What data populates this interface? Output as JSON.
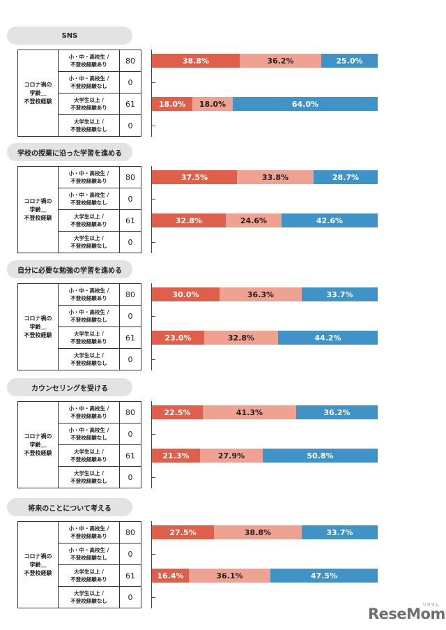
{
  "group_label": "コロナ禍の\n学齢＿\n不登校経験",
  "rows": [
    {
      "label": "小・中・高校生 /\n不登校経験あり",
      "n": "80"
    },
    {
      "label": "小・中・高校生 /\n不登校経験なし",
      "n": "0"
    },
    {
      "label": "大学生以上 /\n不登校経験あり",
      "n": "61"
    },
    {
      "label": "大学生以上 /\n不登校経験なし",
      "n": "0"
    }
  ],
  "colors": [
    "#e05f4a",
    "#f0a292",
    "#3f93c6"
  ],
  "logo": "ReseMom",
  "logo_sub": "リセマム",
  "chart_data": [
    {
      "type": "bar",
      "stacked": "percent",
      "orientation": "horizontal",
      "title": "SNS",
      "categories": [
        "小・中・高校生 / 不登校経験あり",
        "小・中・高校生 / 不登校経験なし",
        "大学生以上 / 不登校経験あり",
        "大学生以上 / 不登校経験なし"
      ],
      "n": [
        80,
        0,
        61,
        0
      ],
      "values": [
        [
          38.8,
          36.2,
          25.0
        ],
        [],
        [
          18.0,
          18.0,
          64.0
        ],
        []
      ],
      "labels": [
        [
          "38.8%",
          "36.2%",
          "25.0%"
        ],
        [],
        [
          "18.0%",
          "18.0%",
          "64.0%"
        ],
        []
      ]
    },
    {
      "type": "bar",
      "stacked": "percent",
      "orientation": "horizontal",
      "title": "学校の授業に沿った学習を進める",
      "categories": [
        "小・中・高校生 / 不登校経験あり",
        "小・中・高校生 / 不登校経験なし",
        "大学生以上 / 不登校経験あり",
        "大学生以上 / 不登校経験なし"
      ],
      "n": [
        80,
        0,
        61,
        0
      ],
      "values": [
        [
          37.5,
          33.8,
          28.7
        ],
        [],
        [
          32.8,
          24.6,
          42.6
        ],
        []
      ],
      "labels": [
        [
          "37.5%",
          "33.8%",
          "28.7%"
        ],
        [],
        [
          "32.8%",
          "24.6%",
          "42.6%"
        ],
        []
      ]
    },
    {
      "type": "bar",
      "stacked": "percent",
      "orientation": "horizontal",
      "title": "自分に必要な勉強の学習を進める",
      "categories": [
        "小・中・高校生 / 不登校経験あり",
        "小・中・高校生 / 不登校経験なし",
        "大学生以上 / 不登校経験あり",
        "大学生以上 / 不登校経験なし"
      ],
      "n": [
        80,
        0,
        61,
        0
      ],
      "values": [
        [
          30.0,
          36.3,
          33.7
        ],
        [],
        [
          23.0,
          32.8,
          44.2
        ],
        []
      ],
      "labels": [
        [
          "30.0%",
          "36.3%",
          "33.7%"
        ],
        [],
        [
          "23.0%",
          "32.8%",
          "44.2%"
        ],
        []
      ]
    },
    {
      "type": "bar",
      "stacked": "percent",
      "orientation": "horizontal",
      "title": "カウンセリングを受ける",
      "categories": [
        "小・中・高校生 / 不登校経験あり",
        "小・中・高校生 / 不登校経験なし",
        "大学生以上 / 不登校経験あり",
        "大学生以上 / 不登校経験なし"
      ],
      "n": [
        80,
        0,
        61,
        0
      ],
      "values": [
        [
          22.5,
          41.3,
          36.2
        ],
        [],
        [
          21.3,
          27.9,
          50.8
        ],
        []
      ],
      "labels": [
        [
          "22.5%",
          "41.3%",
          "36.2%"
        ],
        [],
        [
          "21.3%",
          "27.9%",
          "50.8%"
        ],
        []
      ]
    },
    {
      "type": "bar",
      "stacked": "percent",
      "orientation": "horizontal",
      "title": "将来のことについて考える",
      "categories": [
        "小・中・高校生 / 不登校経験あり",
        "小・中・高校生 / 不登校経験なし",
        "大学生以上 / 不登校経験あり",
        "大学生以上 / 不登校経験なし"
      ],
      "n": [
        80,
        0,
        61,
        0
      ],
      "values": [
        [
          27.5,
          38.8,
          33.7
        ],
        [],
        [
          16.4,
          36.1,
          47.5
        ],
        []
      ],
      "labels": [
        [
          "27.5%",
          "38.8%",
          "33.7%"
        ],
        [],
        [
          "16.4%",
          "36.1%",
          "47.5%"
        ],
        []
      ]
    }
  ]
}
